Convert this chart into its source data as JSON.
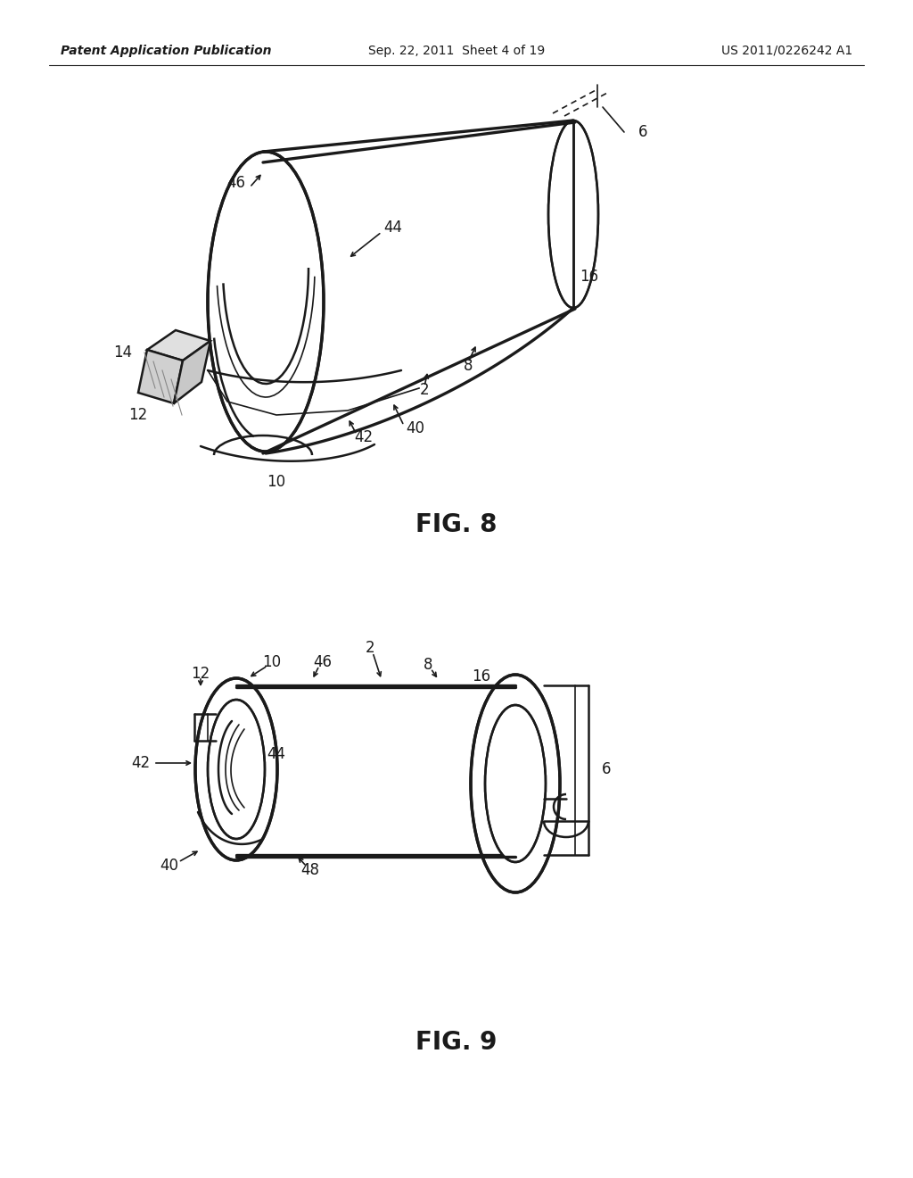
{
  "bg_color": "#ffffff",
  "line_color": "#1a1a1a",
  "header_left": "Patent Application Publication",
  "header_center": "Sep. 22, 2011  Sheet 4 of 19",
  "header_right": "US 2011/0226242 A1",
  "fig8_label": "FIG. 8",
  "fig9_label": "FIG. 9",
  "header_fontsize": 10,
  "fig_label_fontsize": 20,
  "ref_fontsize": 12
}
